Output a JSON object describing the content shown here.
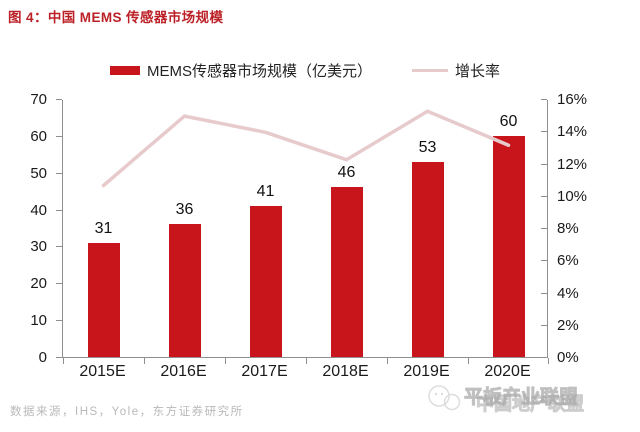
{
  "title": "图 4：中国 MEMS 传感器市场规模",
  "legend": [
    {
      "label": "MEMS传感器市场规模（亿美元）",
      "type": "bar",
      "color": "#C8141B"
    },
    {
      "label": "增长率",
      "type": "line",
      "color": "#E7CBCC"
    }
  ],
  "chart_data": {
    "type": "bar+line",
    "title": "中国 MEMS 传感器市场规模",
    "categories": [
      "2015E",
      "2016E",
      "2017E",
      "2018E",
      "2019E",
      "2020E"
    ],
    "series": [
      {
        "name": "MEMS传感器市场规模（亿美元）",
        "type": "bar",
        "axis": "left",
        "values": [
          31,
          36,
          41,
          46,
          53,
          60
        ],
        "color": "#C8141B"
      },
      {
        "name": "增长率",
        "type": "line",
        "axis": "right",
        "unit": "%",
        "values": [
          10.7,
          15.0,
          14.0,
          12.3,
          15.3,
          13.2
        ],
        "color": "#E7CBCC"
      }
    ],
    "left_axis": {
      "min": 0,
      "max": 70,
      "step": 10,
      "ticks": [
        "0",
        "10",
        "20",
        "30",
        "40",
        "50",
        "60",
        "70"
      ]
    },
    "right_axis": {
      "min": 0,
      "max": 16,
      "step": 2,
      "unit": "%",
      "ticks": [
        "0%",
        "2%",
        "4%",
        "6%",
        "8%",
        "10%",
        "12%",
        "14%",
        "16%"
      ]
    },
    "grid": false,
    "legend_position": "top"
  },
  "source_note": "数据来源，IHS，Yole，东方证券研究所",
  "watermark": {
    "icon": "wechat-icon",
    "text_layer1": "平板产业联盟",
    "text_layer2": "中国地产联盟"
  },
  "colors": {
    "title_red": "#BC2127",
    "bar_red": "#C8141B",
    "line_pink": "#E7CBCC",
    "axis_gray": "#8F8F8F",
    "label_black": "#1a1a1a",
    "source_gray": "#b9b9b9"
  }
}
